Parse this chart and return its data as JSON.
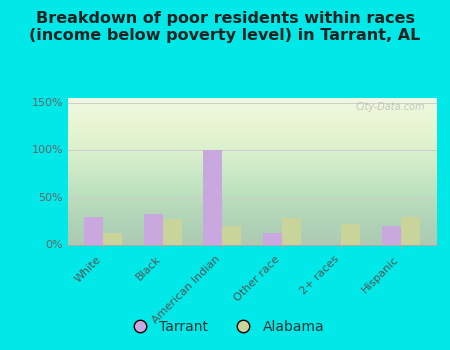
{
  "title": "Breakdown of poor residents within races\n(income below poverty level) in Tarrant, AL",
  "categories": [
    "White",
    "Black",
    "American Indian",
    "Other race",
    "2+ races",
    "Hispanic"
  ],
  "tarrant_values": [
    30,
    33,
    100,
    13,
    0,
    20
  ],
  "alabama_values": [
    13,
    27,
    20,
    28,
    22,
    29
  ],
  "tarrant_color": "#c9a8e0",
  "alabama_color": "#c8d49a",
  "background_color": "#00e8e8",
  "ylim": [
    0,
    155
  ],
  "yticks": [
    0,
    50,
    100,
    150
  ],
  "ytick_labels": [
    "0%",
    "50%",
    "100%",
    "150%"
  ],
  "bar_width": 0.32,
  "title_fontsize": 11.5,
  "tick_fontsize": 8,
  "legend_fontsize": 10,
  "watermark": "City-Data.com"
}
